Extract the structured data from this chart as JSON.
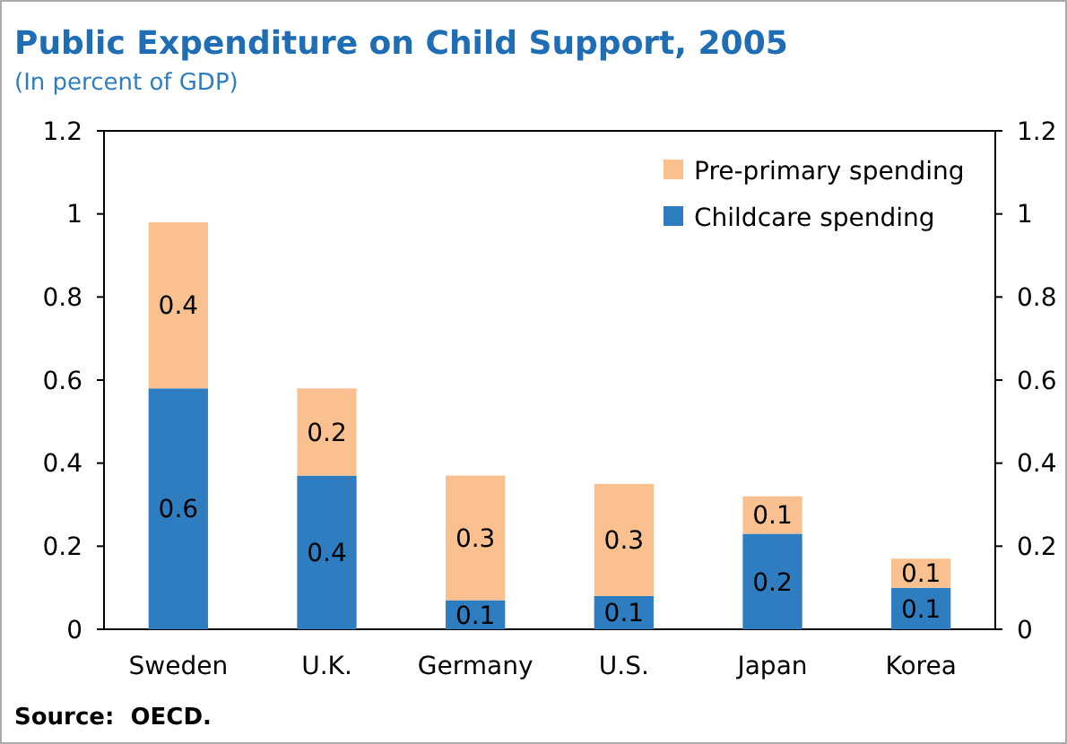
{
  "chart_data": {
    "type": "bar",
    "title": "Public Expenditure on Child Support, 2005",
    "subtitle": "(In percent of GDP)",
    "categories": [
      "Sweden",
      "U.K.",
      "Germany",
      "U.S.",
      "Japan",
      "Korea"
    ],
    "stacked": true,
    "series": [
      {
        "name": "Childcare spending",
        "color": "#2e7dc0",
        "values": [
          0.58,
          0.37,
          0.07,
          0.08,
          0.23,
          0.1
        ],
        "value_labels": [
          "0.6",
          "0.4",
          "0.1",
          "0.1",
          "0.2",
          "0.1"
        ]
      },
      {
        "name": "Pre-primary spending",
        "color": "#fac090",
        "values": [
          0.4,
          0.21,
          0.3,
          0.27,
          0.09,
          0.07
        ],
        "value_labels": [
          "0.4",
          "0.2",
          "0.3",
          "0.3",
          "0.1",
          "0.1"
        ]
      }
    ],
    "ylim": [
      0,
      1.2
    ],
    "yticks": [
      0,
      0.2,
      0.4,
      0.6,
      0.8,
      1,
      1.2
    ],
    "y2lim": [
      0,
      1.2
    ],
    "y2ticks": [
      0,
      0.2,
      0.4,
      0.6,
      0.8,
      1,
      1.2
    ],
    "legend": "top right",
    "grid": false,
    "annotations": [
      "Source:  OECD."
    ]
  }
}
